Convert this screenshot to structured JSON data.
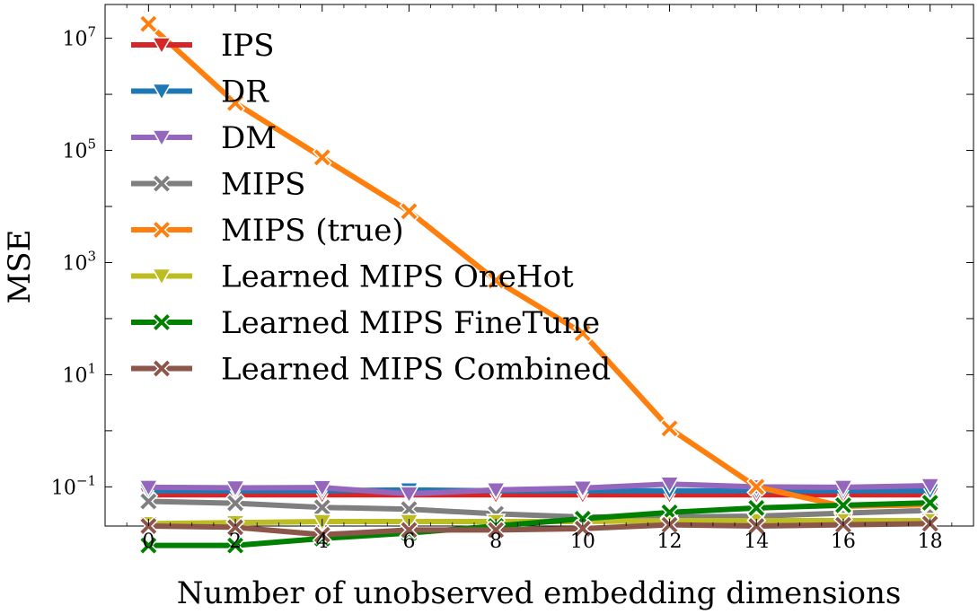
{
  "chart_data": {
    "type": "line",
    "xlabel": "Number of unobserved embedding dimensions",
    "ylabel": "MSE",
    "yscale": "log",
    "xlim": [
      -1,
      19
    ],
    "ylim": [
      0.02,
      40000000
    ],
    "x": [
      0,
      2,
      4,
      6,
      8,
      10,
      12,
      14,
      16,
      18
    ],
    "xticks": [
      0,
      2,
      4,
      6,
      8,
      10,
      12,
      14,
      16,
      18
    ],
    "yticks": [
      {
        "value": 10000000,
        "base": "10",
        "exp": "7"
      },
      {
        "value": 100000,
        "base": "10",
        "exp": "5"
      },
      {
        "value": 1000,
        "base": "10",
        "exp": "3"
      },
      {
        "value": 10,
        "base": "10",
        "exp": "1"
      },
      {
        "value": 0.1,
        "base": "10",
        "exp": "−1"
      }
    ],
    "legend_position": "top-left",
    "grid": false,
    "series": [
      {
        "name": "IPS",
        "color": "#d62728",
        "marker": "triangle-down",
        "values": [
          0.072,
          0.072,
          0.072,
          0.072,
          0.072,
          0.072,
          0.072,
          0.072,
          0.072,
          0.072
        ]
      },
      {
        "name": "DR",
        "color": "#1f77b4",
        "marker": "triangle-down",
        "values": [
          0.085,
          0.085,
          0.085,
          0.088,
          0.085,
          0.085,
          0.085,
          0.085,
          0.085,
          0.085
        ]
      },
      {
        "name": "DM",
        "color": "#9467bd",
        "marker": "triangle-down",
        "values": [
          0.098,
          0.096,
          0.097,
          0.075,
          0.088,
          0.095,
          0.112,
          0.1,
          0.098,
          0.105
        ]
      },
      {
        "name": "MIPS",
        "color": "#7f7f7f",
        "marker": "x",
        "values": [
          0.055,
          0.051,
          0.043,
          0.04,
          0.033,
          0.029,
          0.029,
          0.03,
          0.034,
          0.038
        ]
      },
      {
        "name": "MIPS (true)",
        "color": "#ff7f0e",
        "marker": "x",
        "values": [
          18000000,
          700000,
          75000,
          8200,
          480,
          55,
          1.1,
          0.1,
          0.045,
          0.048
        ]
      },
      {
        "name": "Learned MIPS OneHot",
        "color": "#bcbd22",
        "marker": "triangle-down",
        "values": [
          0.022,
          0.023,
          0.024,
          0.024,
          0.024,
          0.024,
          0.025,
          0.025,
          0.025,
          0.025
        ]
      },
      {
        "name": "Learned MIPS FineTune",
        "color": "#008000",
        "marker": "x",
        "values": [
          0.009,
          0.009,
          0.012,
          0.015,
          0.02,
          0.027,
          0.035,
          0.042,
          0.047,
          0.052
        ]
      },
      {
        "name": "Learned MIPS Combined",
        "color": "#8c564b",
        "marker": "x",
        "values": [
          0.02,
          0.019,
          0.014,
          0.017,
          0.017,
          0.018,
          0.021,
          0.02,
          0.021,
          0.022
        ]
      }
    ]
  }
}
